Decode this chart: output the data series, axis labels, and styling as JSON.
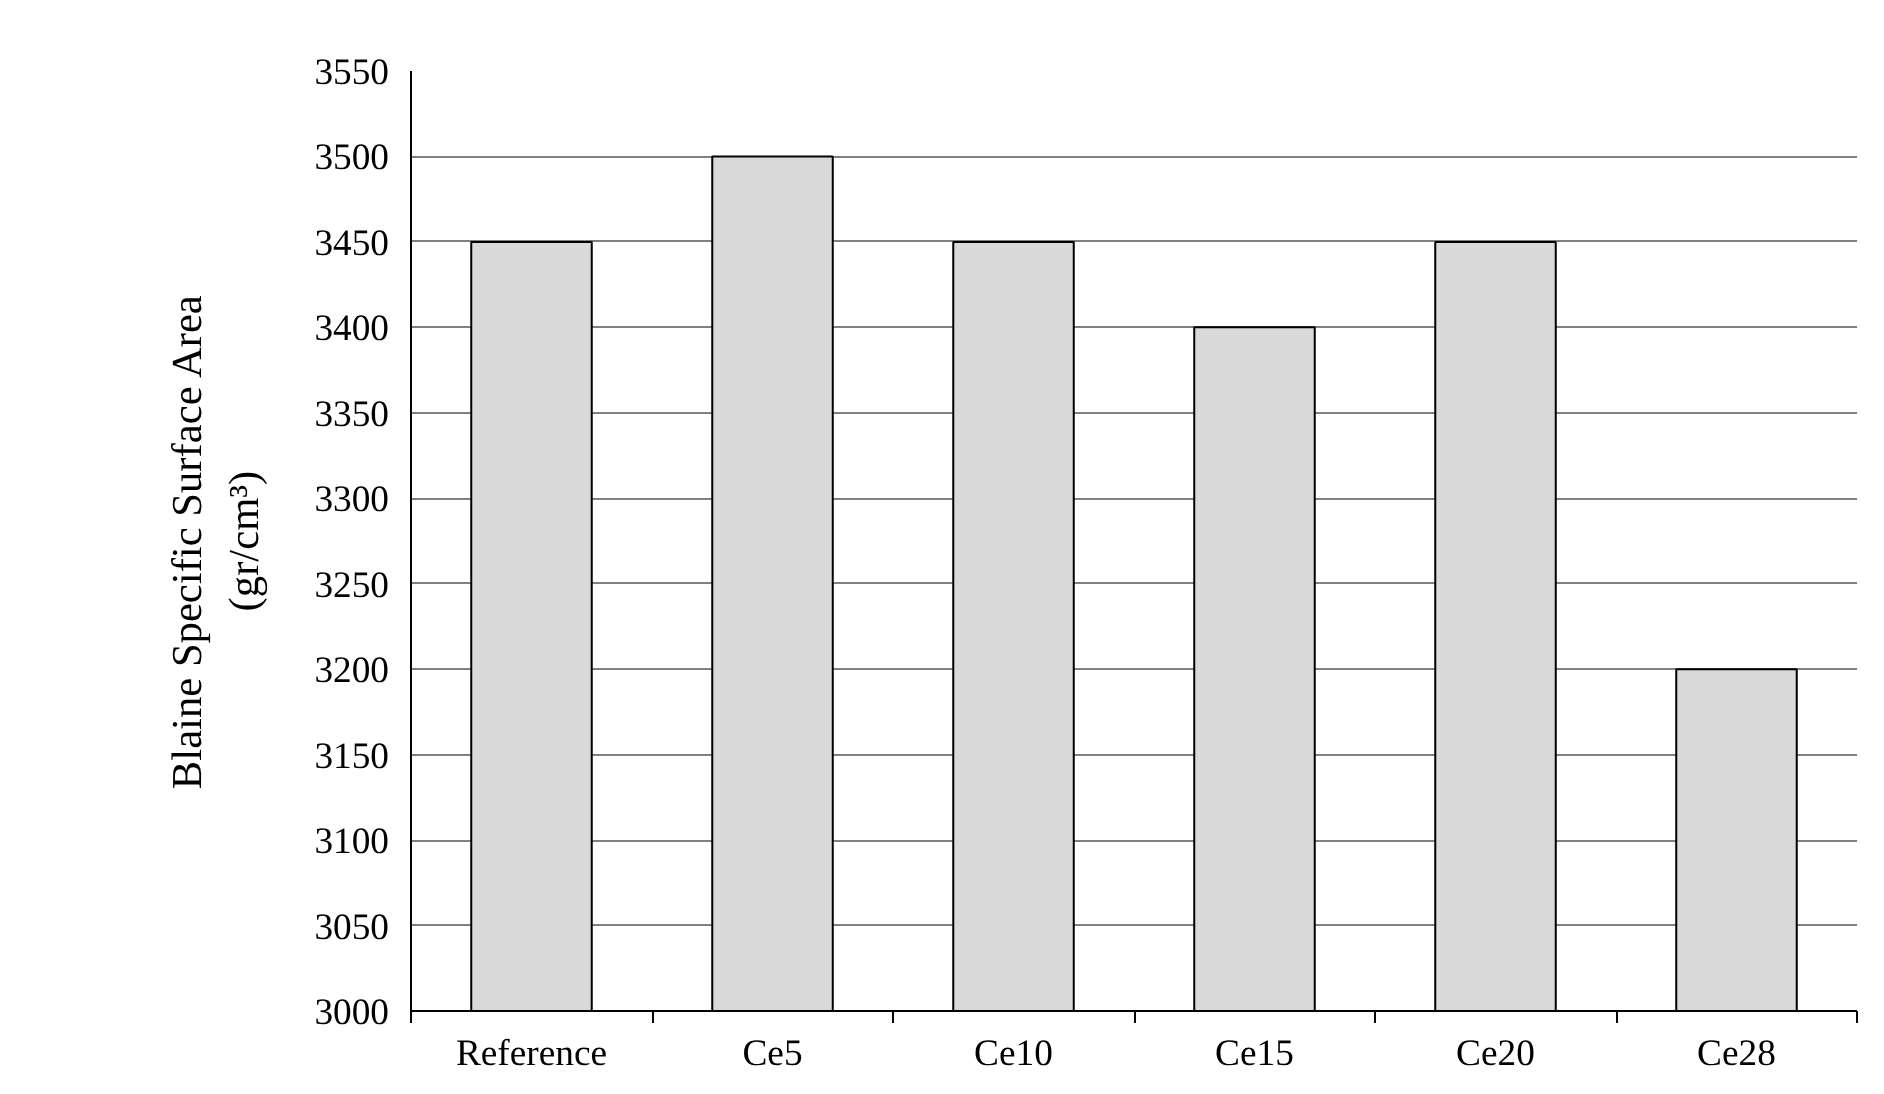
{
  "chart_data": {
    "type": "bar",
    "ylabel": "Blaine Specific Surface Area\n(gr/cm³)",
    "categories": [
      "Reference",
      "Ce5",
      "Ce10",
      "Ce15",
      "Ce20",
      "Ce28"
    ],
    "values": [
      3450,
      3500,
      3450,
      3400,
      3450,
      3200
    ],
    "color": "#d9d9d9",
    "ylim": [
      3000,
      3550
    ],
    "yticks": [
      3000,
      3050,
      3100,
      3150,
      3200,
      3250,
      3300,
      3350,
      3400,
      3450,
      3500,
      3550
    ],
    "grid": "y"
  }
}
